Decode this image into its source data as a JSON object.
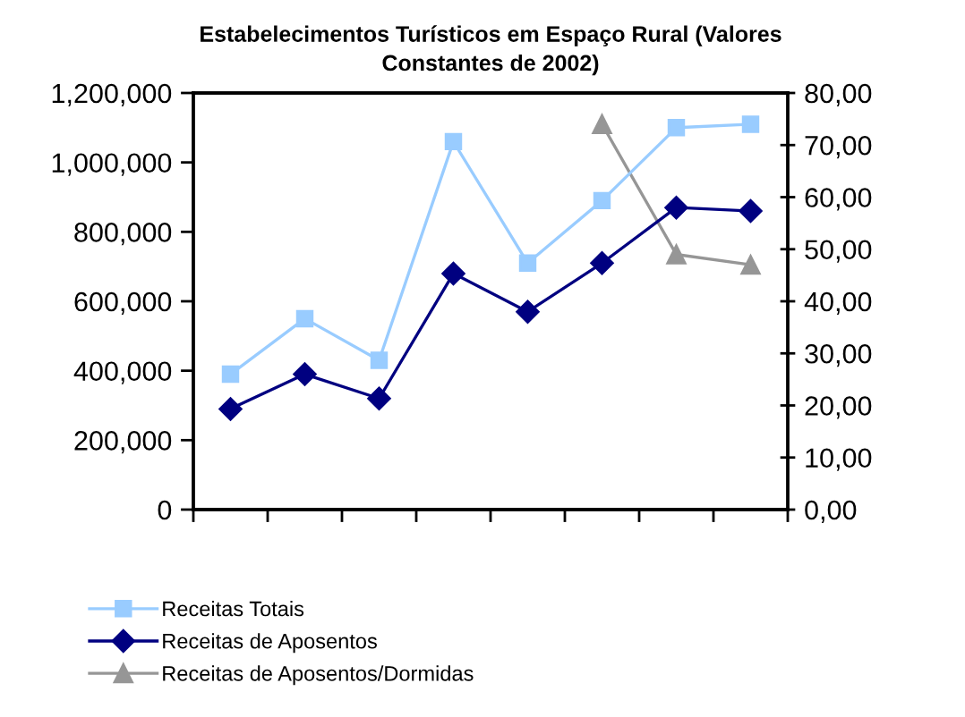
{
  "chart_data": {
    "type": "line",
    "title": "Estabelecimentos Turísticos em Espaço Rural (Valores\nConstantes de 2002)",
    "categories": [
      null,
      null,
      null,
      null,
      null,
      null,
      null,
      null
    ],
    "series": [
      {
        "name": "Receitas Totais",
        "color": "#99ccff",
        "marker": "square",
        "values": [
          390000,
          550000,
          430000,
          1060000,
          710000,
          890000,
          1100000,
          1110000
        ]
      },
      {
        "name": "Receitas de Aposentos",
        "color": "#000080",
        "marker": "diamond",
        "values": [
          290000,
          390000,
          320000,
          680000,
          570000,
          710000,
          870000,
          860000
        ]
      },
      {
        "name": "Receitas de Aposentos/Dormidas",
        "color": "#969696",
        "marker": "triangle",
        "axis": "y2",
        "values": [
          null,
          null,
          null,
          null,
          null,
          74,
          49,
          47
        ]
      }
    ],
    "ylim": [
      0,
      1200000
    ],
    "yticks": [
      0,
      {
        "value": 200000,
        "label": "200,000"
      },
      {
        "value": 400000,
        "label": "400,000"
      },
      {
        "value": 600000,
        "label": "600,000"
      },
      {
        "value": 800000,
        "label": "800,000"
      },
      {
        "value": 1000000,
        "label": "1,000,000"
      },
      {
        "value": 1200000,
        "label": "1,200,000"
      }
    ],
    "y2lim": [
      0,
      80
    ],
    "y2ticks": [
      {
        "value": 0,
        "label": "0,00"
      },
      {
        "value": 10,
        "label": "10,00"
      },
      {
        "value": 20,
        "label": "20,00"
      },
      {
        "value": 30,
        "label": "30,00"
      },
      {
        "value": 40,
        "label": "40,00"
      },
      {
        "value": 50,
        "label": "50,00"
      },
      {
        "value": 60,
        "label": "60,00"
      },
      {
        "value": 70,
        "label": "70,00"
      },
      {
        "value": 80,
        "label": "80,00"
      }
    ],
    "legend": "bottom",
    "line_style": "solid"
  }
}
